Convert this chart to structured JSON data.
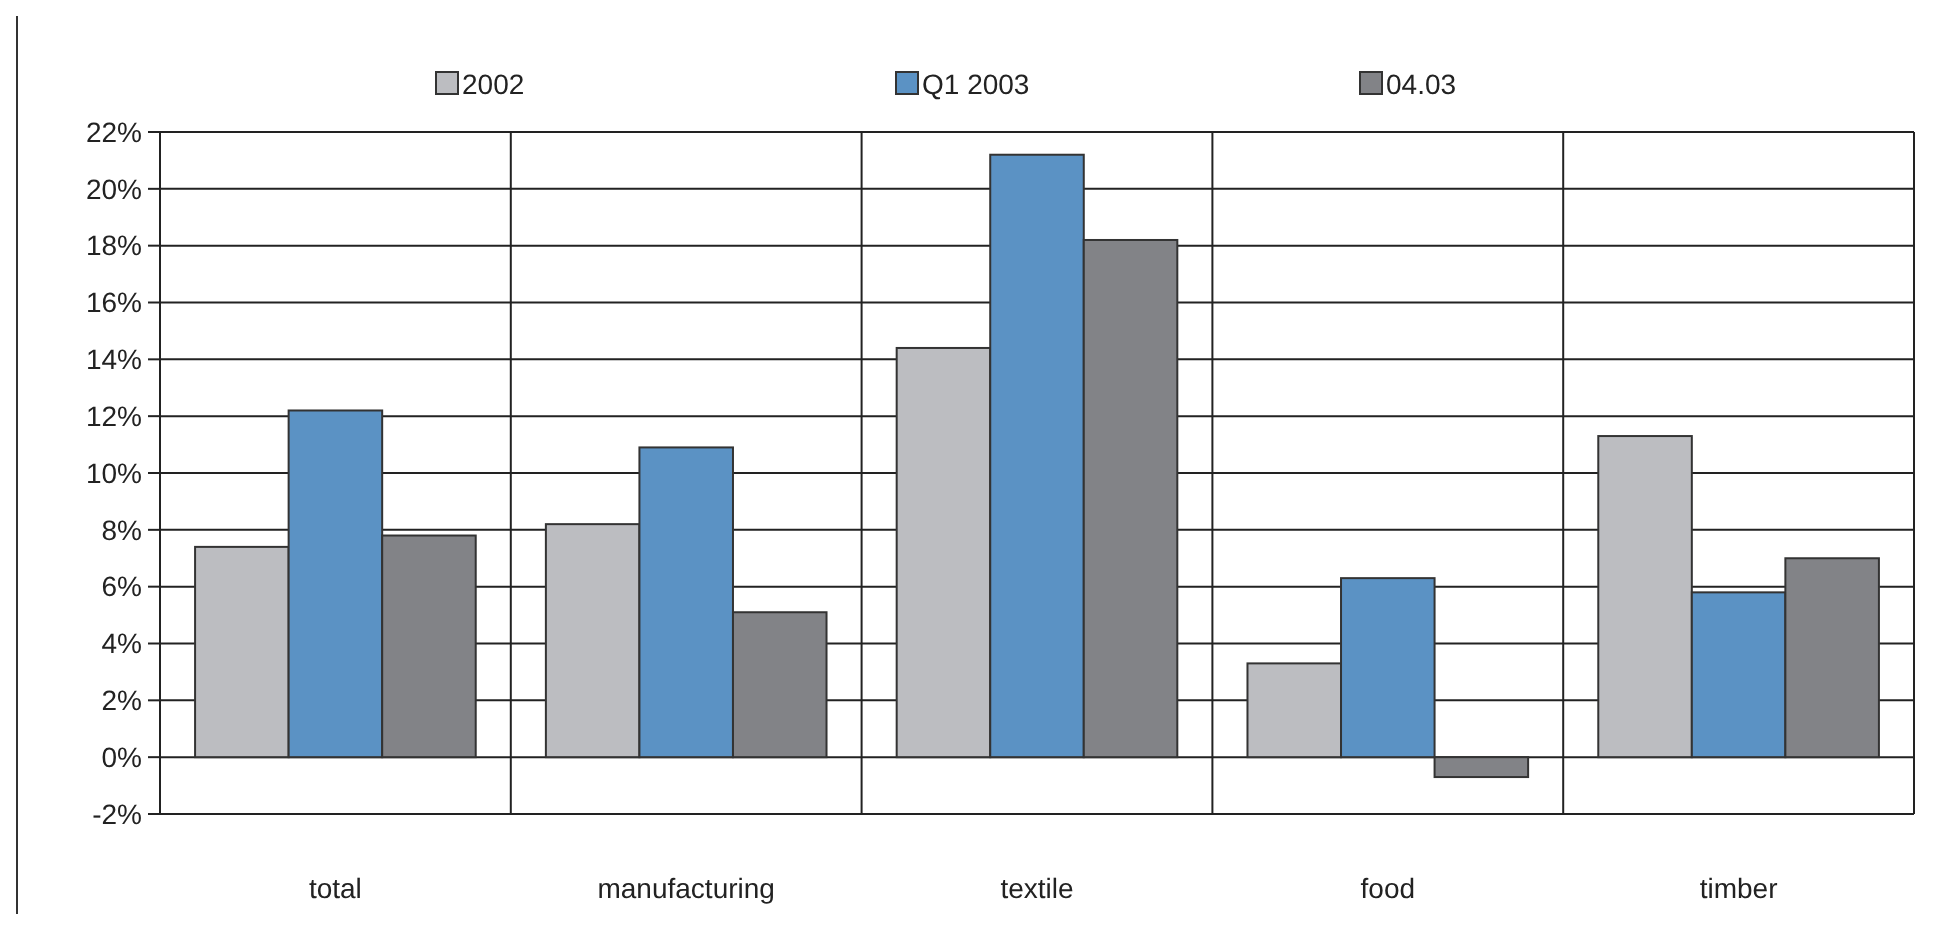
{
  "chart_data": {
    "type": "bar",
    "categories": [
      "total",
      "manufacturing",
      "textile",
      "food",
      "timber"
    ],
    "series": [
      {
        "name": "2002",
        "color": "#bcbdc1",
        "values": [
          7.4,
          8.2,
          14.4,
          3.3,
          11.3
        ]
      },
      {
        "name": "Q1 2003",
        "color": "#5b92c4",
        "values": [
          12.2,
          10.9,
          21.2,
          6.3,
          5.8
        ]
      },
      {
        "name": "04.03",
        "color": "#828387",
        "values": [
          7.8,
          5.1,
          18.2,
          -0.7,
          7.0
        ]
      }
    ],
    "ylim": [
      -2,
      22
    ],
    "yticks": [
      {
        "value": -2,
        "label": "-2%"
      },
      {
        "value": 0,
        "label": "0%"
      },
      {
        "value": 2,
        "label": "2%"
      },
      {
        "value": 4,
        "label": "4%"
      },
      {
        "value": 6,
        "label": "6%"
      },
      {
        "value": 8,
        "label": "8%"
      },
      {
        "value": 10,
        "label": "10%"
      },
      {
        "value": 12,
        "label": "12%"
      },
      {
        "value": 14,
        "label": "14%"
      },
      {
        "value": 16,
        "label": "16%"
      },
      {
        "value": 18,
        "label": "18%"
      },
      {
        "value": 20,
        "label": "20%"
      },
      {
        "value": 22,
        "label": "22%"
      }
    ],
    "grid": true,
    "legend": "top"
  }
}
